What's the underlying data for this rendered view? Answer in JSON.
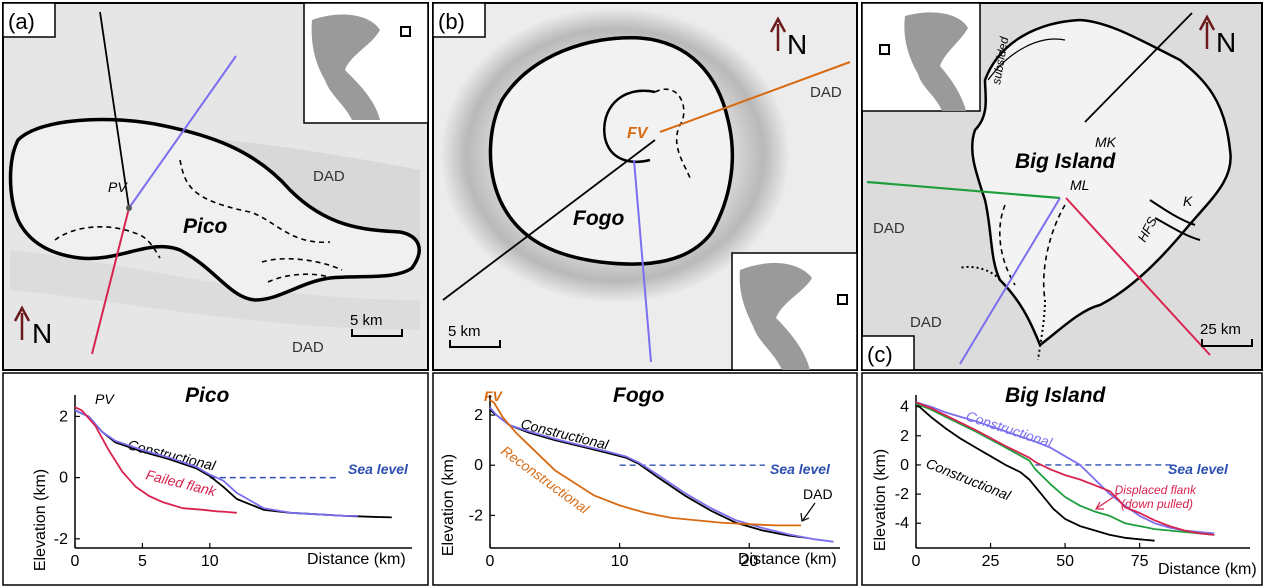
{
  "panels": {
    "a": {
      "tag": "(a)",
      "north": "N",
      "volcano": "Pico",
      "vent": "PV",
      "dad": "DAD",
      "dad2": "DAD",
      "scale": "5 km"
    },
    "b": {
      "tag": "(b)",
      "north": "N",
      "volcano": "Fogo",
      "vent": "FV",
      "dad": "DAD",
      "scale": "5 km"
    },
    "c": {
      "tag": "(c)",
      "north": "N",
      "volcano": "Big Island",
      "mk": "MK",
      "ml": "ML",
      "k": "K",
      "hfs": "HFS",
      "subsided": "subsided",
      "dad1": "DAD",
      "dad2": "DAD",
      "scale": "25 km"
    }
  },
  "colors": {
    "black": "#000000",
    "red": "#d8234f",
    "purple": "#7b6ff0",
    "orange": "#d86a12",
    "green": "#1e9e3c",
    "sea": "#2c4fb0"
  },
  "chart_data": [
    {
      "type": "line",
      "title": "Pico",
      "xlabel": "Distance (km)",
      "ylabel": "Elevation (km)",
      "xlim": [
        0,
        25
      ],
      "ylim": [
        -2.3,
        2.7
      ],
      "xticks": [
        0,
        5,
        10
      ],
      "yticks": [
        -2,
        0,
        2
      ],
      "vent_label": "PV",
      "sea_level": {
        "y": 0,
        "label": "Sea level",
        "x_start": 10
      },
      "series": [
        {
          "name": "Constructional",
          "color": "#000000",
          "x": [
            0,
            1,
            2,
            3,
            5,
            7,
            9,
            10,
            11,
            12,
            14,
            16,
            18,
            20,
            22,
            23.5
          ],
          "y": [
            2.2,
            2.0,
            1.5,
            1.15,
            0.85,
            0.6,
            0.3,
            0.05,
            -0.3,
            -0.7,
            -1.05,
            -1.15,
            -1.2,
            -1.25,
            -1.28,
            -1.3
          ]
        },
        {
          "name": "",
          "color": "#7b6ff0",
          "x": [
            0,
            1,
            2,
            3,
            5,
            7,
            9,
            10,
            11,
            12,
            14,
            16,
            18,
            20,
            21
          ],
          "y": [
            2.2,
            2.0,
            1.5,
            1.2,
            0.9,
            0.65,
            0.35,
            0.1,
            -0.1,
            -0.5,
            -1.0,
            -1.15,
            -1.2,
            -1.25,
            -1.25
          ]
        },
        {
          "name": "Failed flank",
          "color": "#d8234f",
          "x": [
            0,
            0.5,
            1.5,
            2.5,
            3.5,
            4.5,
            5.5,
            6.5,
            8,
            9.5,
            10.5,
            11.2,
            12
          ],
          "y": [
            2.3,
            2.2,
            1.7,
            0.9,
            0.2,
            -0.3,
            -0.6,
            -0.8,
            -1.0,
            -1.05,
            -1.1,
            -1.12,
            -1.15
          ]
        }
      ],
      "labels": [
        "Constructional",
        "Failed flank"
      ]
    },
    {
      "type": "line",
      "title": "Fogo",
      "xlabel": "Distance (km)",
      "ylabel": "Elevation (km)",
      "xlim": [
        0,
        27
      ],
      "ylim": [
        -3.3,
        2.8
      ],
      "xticks": [
        0,
        10,
        20
      ],
      "yticks": [
        -2,
        0,
        2
      ],
      "vent_label": "FV",
      "dad_label": "DAD",
      "sea_level": {
        "y": 0,
        "label": "Sea level",
        "x_start": 10
      },
      "series": [
        {
          "name": "Constructional",
          "color": "#000000",
          "x": [
            0,
            0.5,
            1.5,
            3,
            5,
            7,
            9,
            10.5,
            11.5,
            13,
            15,
            17,
            19,
            21,
            23,
            24.5
          ],
          "y": [
            2.2,
            2.0,
            1.6,
            1.3,
            1.0,
            0.75,
            0.5,
            0.3,
            0.05,
            -0.5,
            -1.2,
            -1.8,
            -2.3,
            -2.6,
            -2.8,
            -2.9
          ]
        },
        {
          "name": "",
          "color": "#7b6ff0",
          "x": [
            0,
            0.5,
            1.5,
            3,
            5,
            7,
            9,
            10.5,
            11.5,
            13,
            15,
            17,
            19,
            21,
            23,
            25,
            26.5
          ],
          "y": [
            2.3,
            2.0,
            1.6,
            1.35,
            1.05,
            0.8,
            0.55,
            0.35,
            0.1,
            -0.4,
            -1.1,
            -1.7,
            -2.2,
            -2.5,
            -2.75,
            -2.95,
            -3.05
          ]
        },
        {
          "name": "Reconstructional",
          "color": "#d86a12",
          "x": [
            0,
            0.3,
            1,
            2,
            3,
            4,
            5,
            6.5,
            8,
            10,
            12,
            14,
            16,
            18,
            20,
            22,
            24
          ],
          "y": [
            2.6,
            2.5,
            1.9,
            1.3,
            0.8,
            0.3,
            -0.2,
            -0.7,
            -1.2,
            -1.6,
            -1.9,
            -2.1,
            -2.2,
            -2.3,
            -2.35,
            -2.4,
            -2.4
          ]
        }
      ],
      "labels": [
        "Constructional",
        "Reconstructional"
      ]
    },
    {
      "type": "line",
      "title": "Big Island",
      "xlabel": "Distance (km)",
      "ylabel": "Elevation (km)",
      "xlim": [
        0,
        112
      ],
      "ylim": [
        -5.7,
        4.8
      ],
      "xticks": [
        0,
        25,
        50,
        75
      ],
      "yticks": [
        -4,
        -2,
        0,
        2,
        4
      ],
      "sea_level": {
        "y": 0,
        "label": "Sea level",
        "x_start": 40
      },
      "annotation": "Displaced flank (down pulled)",
      "series": [
        {
          "name": "Constructional",
          "color": "#000000",
          "x": [
            0,
            5,
            10,
            15,
            20,
            25,
            30,
            35,
            38,
            42,
            46,
            50,
            55,
            60,
            65,
            70,
            75,
            80
          ],
          "y": [
            4.2,
            3.3,
            2.5,
            1.8,
            1.2,
            0.6,
            0.0,
            -0.5,
            -1.0,
            -2.0,
            -3.0,
            -3.7,
            -4.2,
            -4.5,
            -4.8,
            -5.0,
            -5.1,
            -5.2
          ]
        },
        {
          "name": "Constructional",
          "color": "#7b6ff0",
          "x": [
            0,
            5,
            10,
            20,
            30,
            40,
            45,
            50,
            55,
            60,
            65,
            70,
            75,
            80,
            85,
            90,
            95,
            100
          ],
          "y": [
            4.3,
            4.0,
            3.6,
            3.0,
            2.3,
            1.6,
            1.2,
            0.6,
            0.0,
            -1.0,
            -2.0,
            -2.8,
            -3.5,
            -4.0,
            -4.3,
            -4.5,
            -4.6,
            -4.7
          ]
        },
        {
          "name": "",
          "color": "#1e9e3c",
          "x": [
            0,
            5,
            10,
            20,
            30,
            38,
            40,
            45,
            50,
            55,
            60,
            65,
            70,
            75,
            80,
            85,
            90,
            95,
            100
          ],
          "y": [
            4.2,
            3.8,
            3.3,
            2.3,
            1.2,
            0.3,
            -0.3,
            -1.3,
            -2.2,
            -2.8,
            -3.2,
            -3.5,
            -4.0,
            -4.2,
            -4.4,
            -4.5,
            -4.6,
            -4.7,
            -4.8
          ]
        },
        {
          "name": "",
          "color": "#d8234f",
          "x": [
            0,
            5,
            10,
            20,
            30,
            38,
            40,
            45,
            50,
            55,
            60,
            65,
            68,
            70,
            75,
            80,
            85,
            90,
            95,
            100
          ],
          "y": [
            4.3,
            3.9,
            3.4,
            2.4,
            1.3,
            0.5,
            0.2,
            -0.3,
            -0.7,
            -1.0,
            -1.4,
            -1.8,
            -2.4,
            -2.9,
            -3.3,
            -3.8,
            -4.2,
            -4.5,
            -4.7,
            -4.8
          ]
        }
      ],
      "labels": [
        "Constructional",
        "Constructional"
      ]
    }
  ]
}
